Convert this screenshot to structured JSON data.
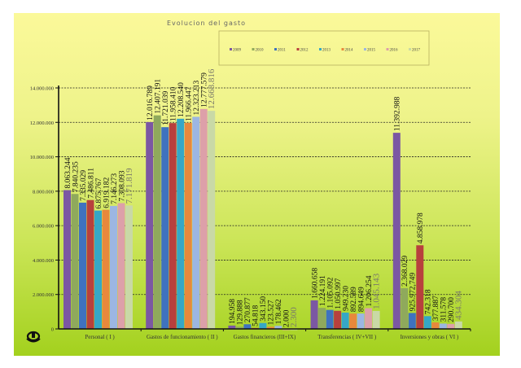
{
  "chart_data": {
    "type": "bar",
    "title": "Evolucion del gasto",
    "categories": [
      "Personal ( I )",
      "Gastos de funcionamiento ( II )",
      "Gastos financieros (III+IX)",
      "Transferencias ( IV+VII )",
      "Inversiones y obras ( VI )"
    ],
    "series": [
      {
        "name": "2009",
        "color": "#7b57a3",
        "values": [
          8063244,
          12016789,
          194958,
          1660658,
          11392988
        ],
        "labels": [
          "8.063.244",
          "12.016.789",
          "194.958",
          "1.660.658",
          "11.392.988"
        ]
      },
      {
        "name": "2010",
        "color": "#8fa95c",
        "values": [
          7840235,
          12407191,
          129888,
          1224191,
          2368029
        ],
        "labels": [
          "7.840.235",
          "12.407.191",
          "129.888",
          "1.224.191",
          "2.368.029"
        ]
      },
      {
        "name": "2011",
        "color": "#3f72bf",
        "values": [
          7335029,
          11721039,
          270877,
          1105092,
          925972.749
        ],
        "labels": [
          "7.335.029",
          "11.721.039",
          "270.877",
          "1.105.092",
          "925.972,749"
        ]
      },
      {
        "name": "2012",
        "color": "#b8403d",
        "values": [
          7486811,
          11958410,
          54818,
          1050997,
          4858978
        ],
        "labels": [
          "7.486.811",
          "11.958.410",
          "54.818",
          "1.050.997",
          "4.858.978"
        ]
      },
      {
        "name": "2013",
        "color": "#36a7c6",
        "values": [
          6875767,
          12208540,
          343150,
          949230,
          742318
        ],
        "labels": [
          "6.875.767",
          "12.208.540",
          "343.150",
          "949.230",
          "742.318"
        ]
      },
      {
        "name": "2014",
        "color": "#e8883c",
        "values": [
          6919182,
          11966447,
          123527,
          892589,
          377887
        ],
        "labels": [
          "6.919.182",
          "11.966.447",
          "123.527",
          "892.589",
          "377.887"
        ]
      },
      {
        "name": "2015",
        "color": "#9cb6e2",
        "values": [
          7146273,
          12323213,
          178462,
          894649,
          311578
        ],
        "labels": [
          "7.146.273",
          "12.323.213",
          "178.462",
          "894.649",
          "311.578"
        ]
      },
      {
        "name": "2016",
        "color": "#dda0a9",
        "values": [
          7308093,
          12777579,
          2000,
          1206254,
          290700
        ],
        "labels": [
          "7.308.093",
          "12.777.579",
          "2.000",
          "1.206.254",
          "290.700"
        ]
      },
      {
        "name": "2017",
        "color": "#c9d9a6",
        "values": [
          7171819,
          12668816,
          2300,
          1045143,
          434304
        ],
        "labels": [
          "7.171.819",
          "12.668.816",
          "2.300",
          "1.045.143",
          "434.304"
        ]
      }
    ],
    "yticks": [
      "0",
      "2.000.000",
      "4.000.000",
      "6.000.000",
      "8.000.000",
      "10.000.000",
      "12.000.000",
      "14.000.000"
    ],
    "ylim": [
      0,
      14000000
    ],
    "grid": true,
    "legend": "top"
  }
}
